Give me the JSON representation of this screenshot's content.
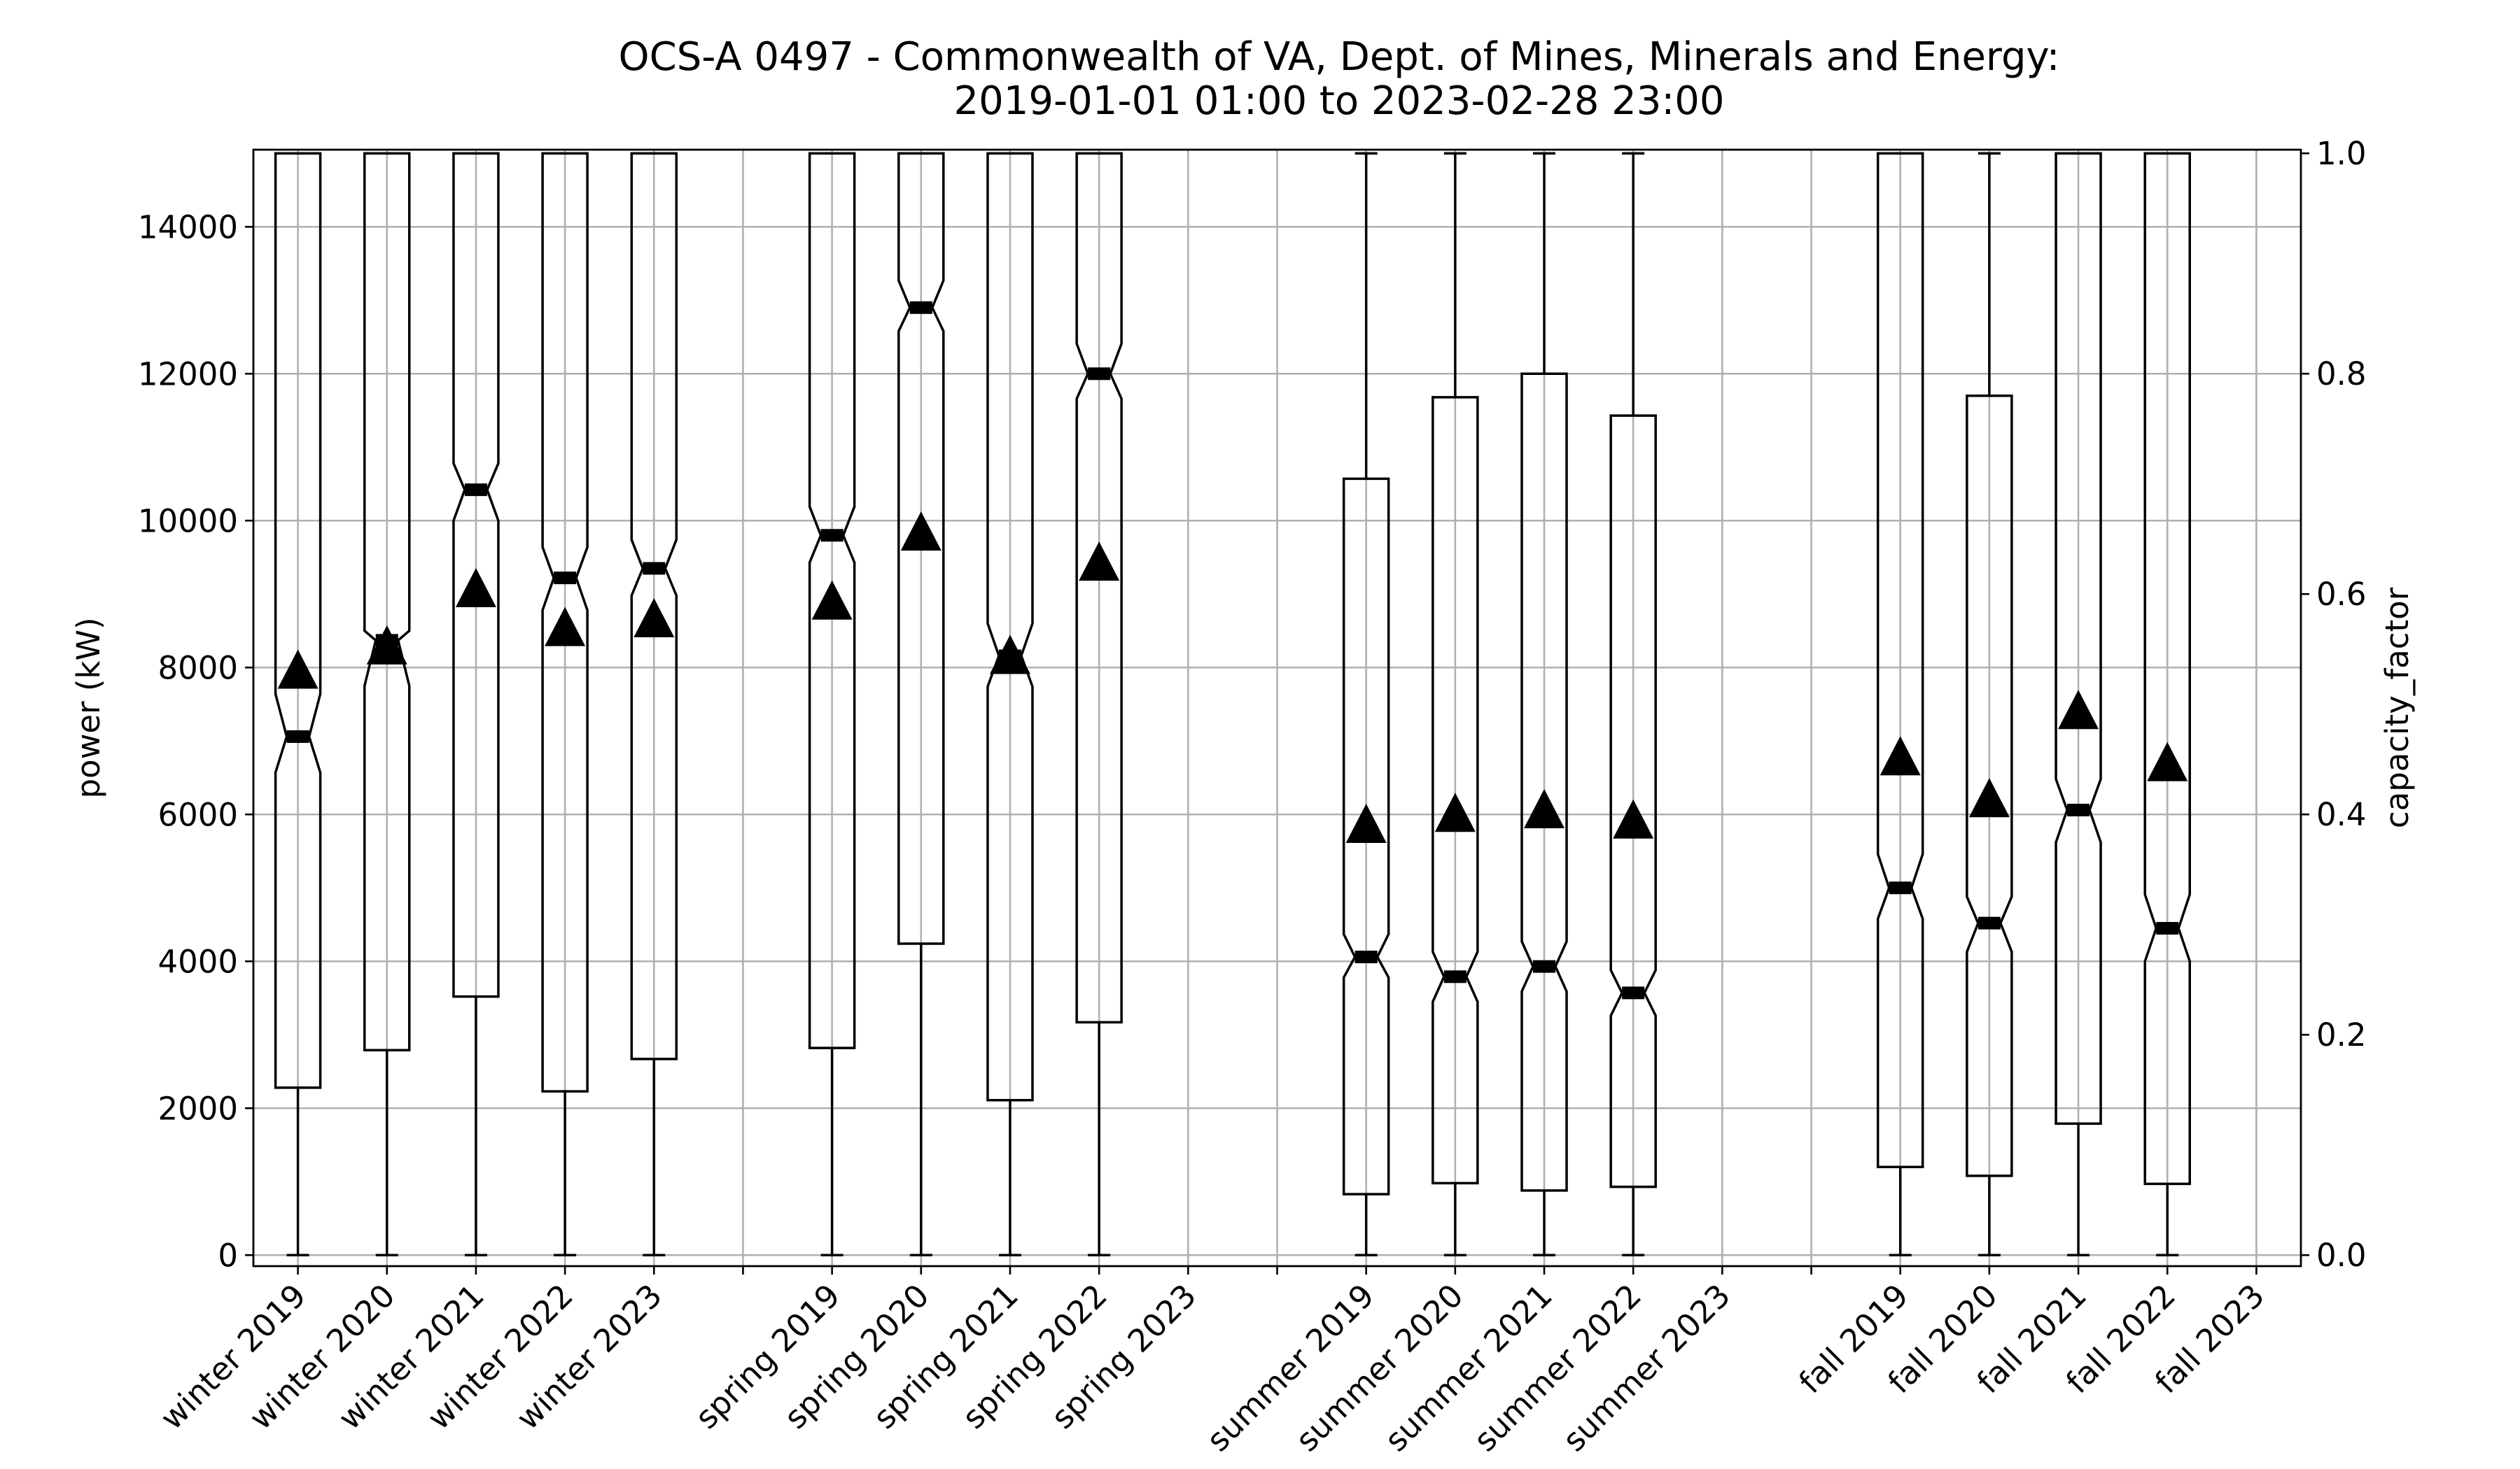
{
  "chart_data": {
    "type": "box",
    "title": "OCS-A 0497 - Commonwealth of VA, Dept. of Mines, Minerals and Energy:",
    "subtitle": "2019-01-01 01:00 to 2023-02-28 23:00",
    "ylabel": "power (kW)",
    "ylabel_right": "capacity_factor",
    "ylim": [
      -150,
      15050
    ],
    "ylim_right": [
      -0.01,
      1.0033
    ],
    "yticks": [
      0,
      2000,
      4000,
      6000,
      8000,
      10000,
      12000,
      14000
    ],
    "ytick_labels": [
      "0",
      "2000",
      "4000",
      "6000",
      "8000",
      "10000",
      "12000",
      "14000"
    ],
    "yticks_right": [
      0.0,
      0.2,
      0.4,
      0.6,
      0.8,
      1.0
    ],
    "ytick_labels_right": [
      "0.0",
      "0.2",
      "0.4",
      "0.6",
      "0.8",
      "1.0"
    ],
    "grid": true,
    "categories": [
      "winter 2019",
      "winter 2020",
      "winter 2021",
      "winter 2022",
      "winter 2023",
      "",
      "spring 2019",
      "spring 2020",
      "spring 2021",
      "spring 2022",
      "spring 2023",
      "",
      "summer 2019",
      "summer 2020",
      "summer 2021",
      "summer 2022",
      "summer 2023",
      "",
      "fall 2019",
      "fall 2020",
      "fall 2021",
      "fall 2022",
      "fall 2023"
    ],
    "boxes": [
      {
        "category": "winter 2019",
        "whislo": 0,
        "q1": 2280,
        "med": 7060,
        "q3": 15000,
        "whishi": 15000,
        "mean": 7950,
        "notch_lo": 6570,
        "notch_hi": 7640
      },
      {
        "category": "winter 2020",
        "whislo": 0,
        "q1": 2790,
        "med": 8370,
        "q3": 15000,
        "whishi": 15000,
        "mean": 8280,
        "notch_lo": 7750,
        "notch_hi": 8500
      },
      {
        "category": "winter 2021",
        "whislo": 0,
        "q1": 3520,
        "med": 10420,
        "q3": 15000,
        "whishi": 15000,
        "mean": 9060,
        "notch_lo": 10000,
        "notch_hi": 10780
      },
      {
        "category": "winter 2022",
        "whislo": 0,
        "q1": 2230,
        "med": 9220,
        "q3": 15000,
        "whishi": 15000,
        "mean": 8530,
        "notch_lo": 8780,
        "notch_hi": 9640
      },
      {
        "category": "winter 2023",
        "whislo": 0,
        "q1": 2670,
        "med": 9350,
        "q3": 15000,
        "whishi": 15000,
        "mean": 8650,
        "notch_lo": 8980,
        "notch_hi": 9740
      },
      {
        "category": "spring 2019",
        "whislo": 0,
        "q1": 2820,
        "med": 9800,
        "q3": 15000,
        "whishi": 15000,
        "mean": 8890,
        "notch_lo": 9430,
        "notch_hi": 10190
      },
      {
        "category": "spring 2020",
        "whislo": 0,
        "q1": 4240,
        "med": 12900,
        "q3": 15000,
        "whishi": 15000,
        "mean": 9830,
        "notch_lo": 12580,
        "notch_hi": 13270
      },
      {
        "category": "spring 2021",
        "whislo": 0,
        "q1": 2110,
        "med": 8160,
        "q3": 15000,
        "whishi": 15000,
        "mean": 8150,
        "notch_lo": 7740,
        "notch_hi": 8600
      },
      {
        "category": "spring 2022",
        "whislo": 0,
        "q1": 3170,
        "med": 12000,
        "q3": 15000,
        "whishi": 15000,
        "mean": 9420,
        "notch_lo": 11660,
        "notch_hi": 12410
      },
      {
        "category": "summer 2019",
        "whislo": 0,
        "q1": 830,
        "med": 4060,
        "q3": 10570,
        "whishi": 15000,
        "mean": 5850,
        "notch_lo": 3780,
        "notch_hi": 4370
      },
      {
        "category": "summer 2020",
        "whislo": 0,
        "q1": 980,
        "med": 3790,
        "q3": 11680,
        "whishi": 15000,
        "mean": 6000,
        "notch_lo": 3450,
        "notch_hi": 4130
      },
      {
        "category": "summer 2021",
        "whislo": 0,
        "q1": 880,
        "med": 3930,
        "q3": 12000,
        "whishi": 15000,
        "mean": 6050,
        "notch_lo": 3590,
        "notch_hi": 4270
      },
      {
        "category": "summer 2022",
        "whislo": 0,
        "q1": 930,
        "med": 3570,
        "q3": 11430,
        "whishi": 15000,
        "mean": 5910,
        "notch_lo": 3260,
        "notch_hi": 3880
      },
      {
        "category": "fall 2019",
        "whislo": 0,
        "q1": 1200,
        "med": 5000,
        "q3": 15000,
        "whishi": 15000,
        "mean": 6770,
        "notch_lo": 4580,
        "notch_hi": 5460
      },
      {
        "category": "fall 2020",
        "whislo": 0,
        "q1": 1080,
        "med": 4520,
        "q3": 11700,
        "whishi": 15000,
        "mean": 6200,
        "notch_lo": 4130,
        "notch_hi": 4880
      },
      {
        "category": "fall 2021",
        "whislo": 0,
        "q1": 1790,
        "med": 6060,
        "q3": 15000,
        "whishi": 15000,
        "mean": 7400,
        "notch_lo": 5620,
        "notch_hi": 6480
      },
      {
        "category": "fall 2022",
        "whislo": 0,
        "q1": 970,
        "med": 4450,
        "q3": 15000,
        "whishi": 15000,
        "mean": 6690,
        "notch_lo": 4000,
        "notch_hi": 4910
      }
    ]
  }
}
